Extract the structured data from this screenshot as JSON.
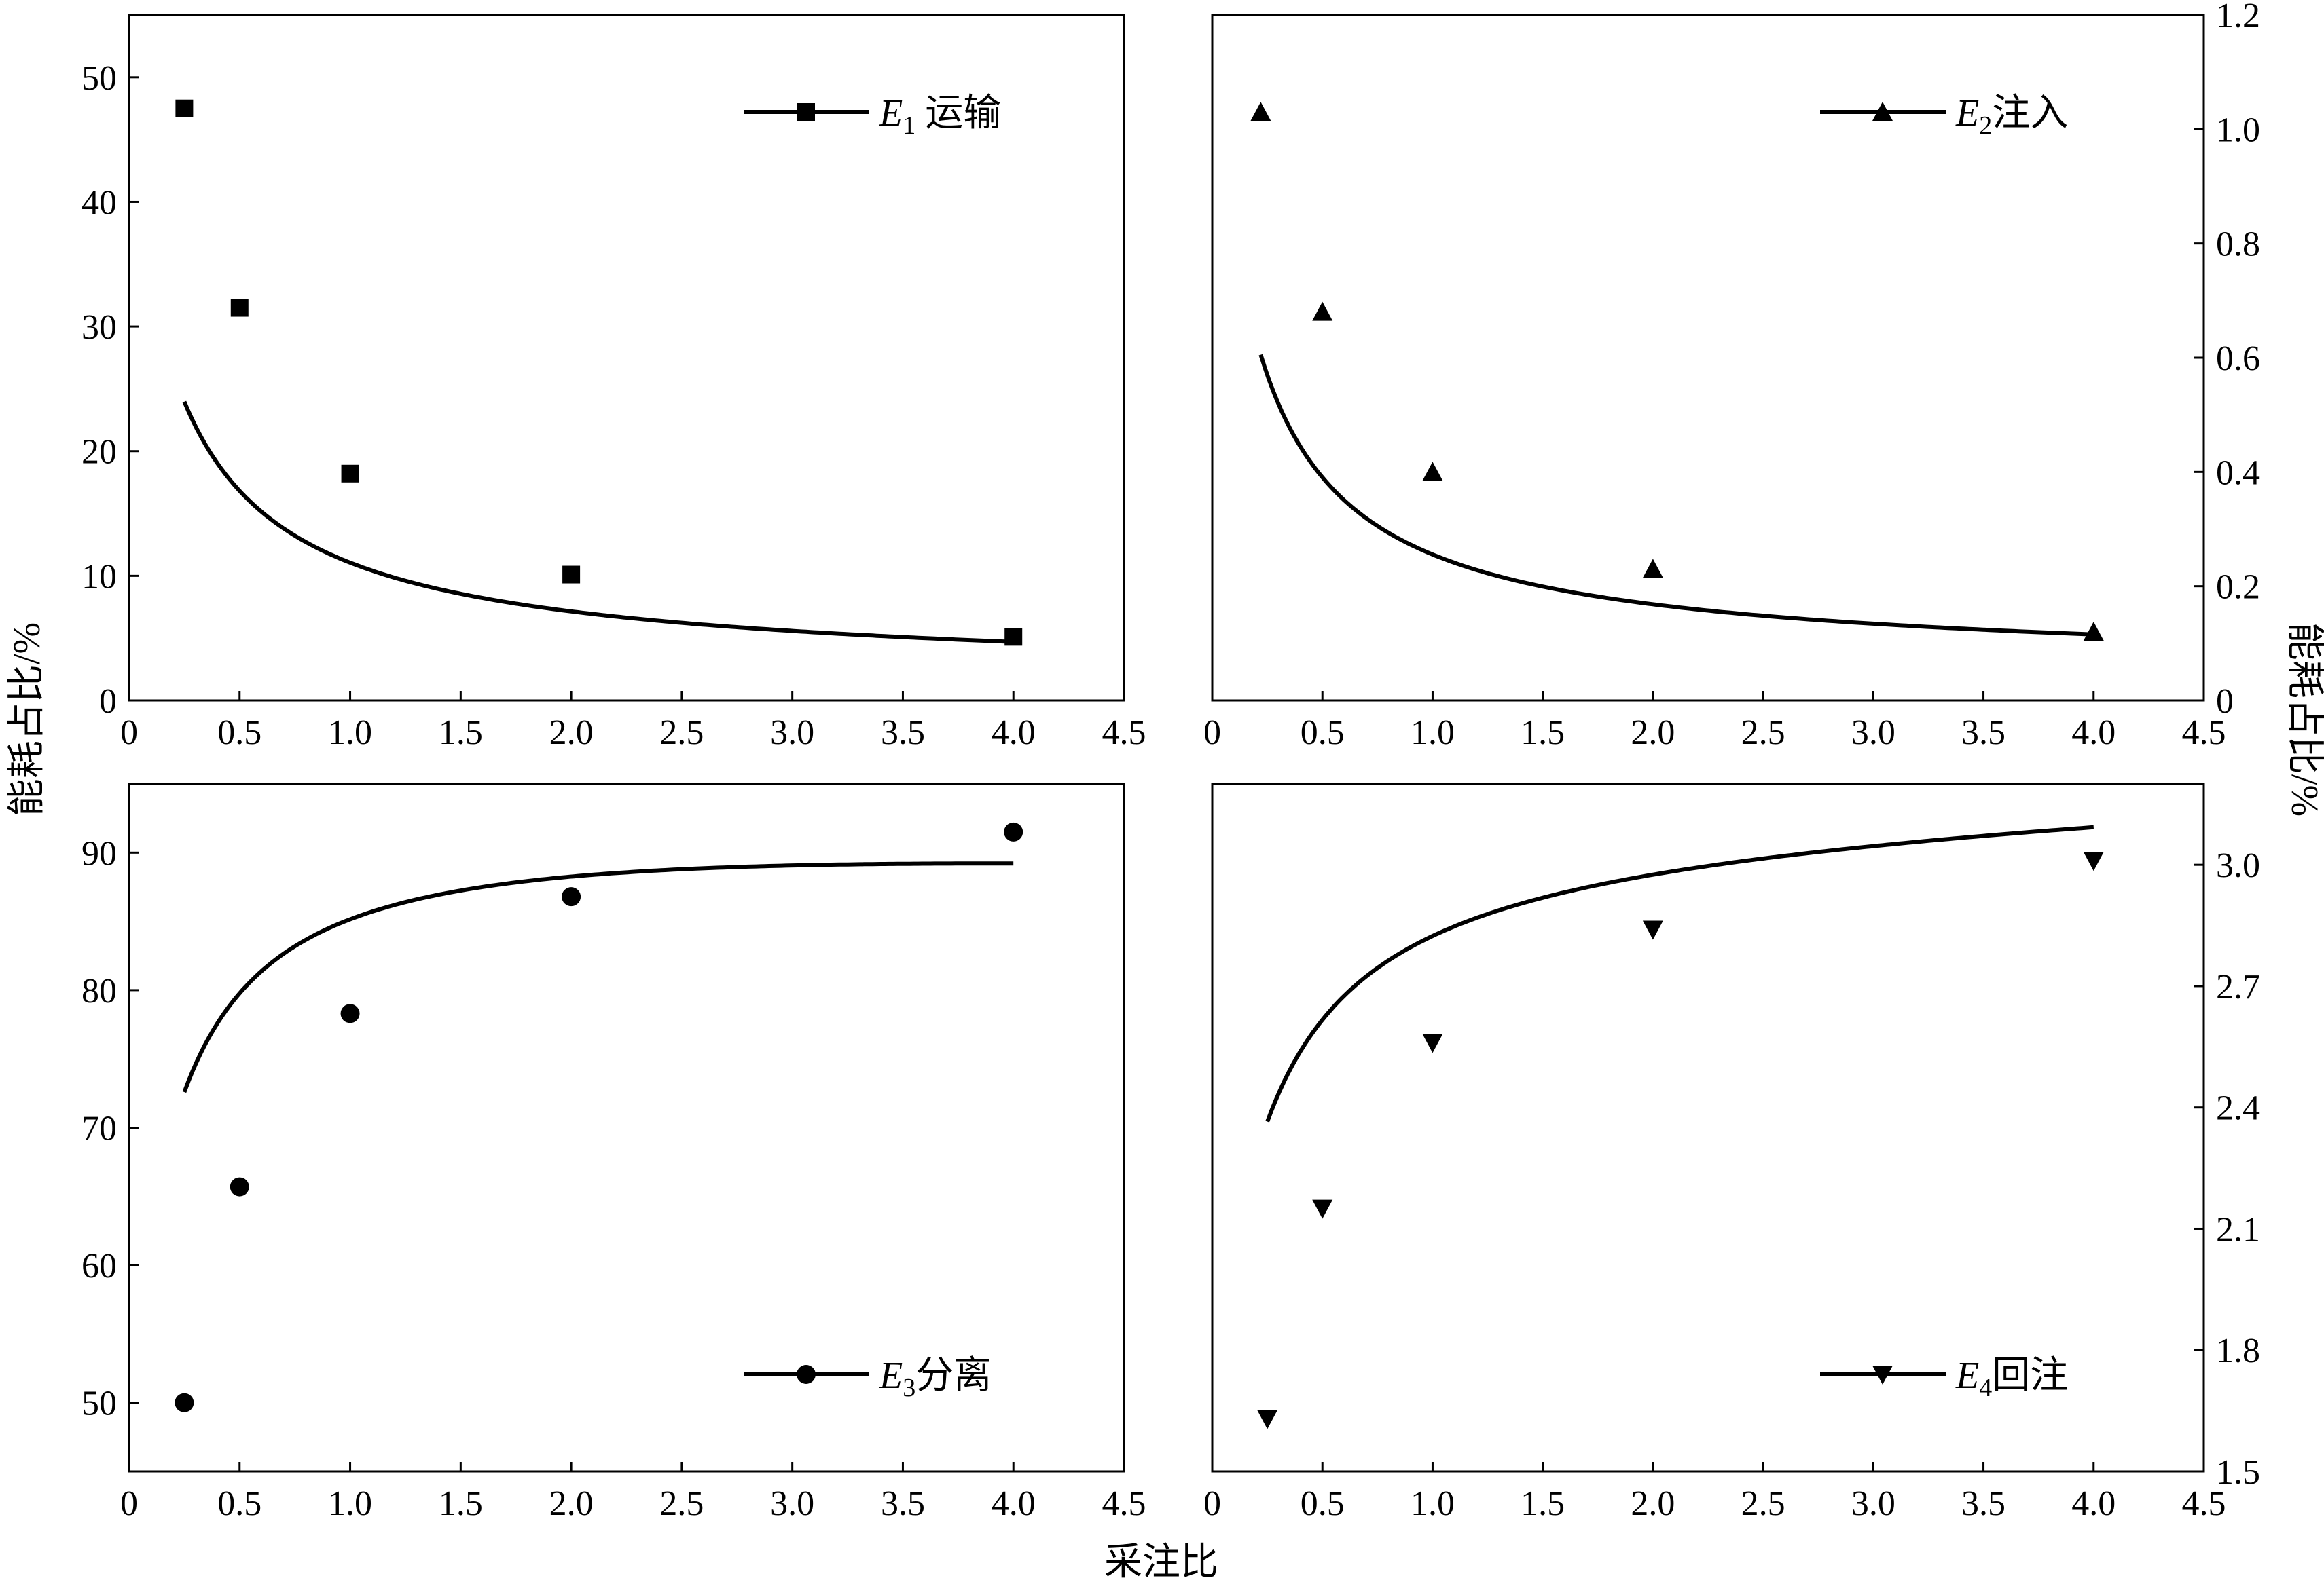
{
  "figure": {
    "xlabel": "采注比",
    "ylabel_left": "能耗占比/%",
    "ylabel_right": "能耗占比/%"
  },
  "chart_data": [
    {
      "type": "scatter",
      "marker": "square",
      "legend": {
        "symbol": "E",
        "sub": "1",
        "text": " 运输",
        "placement": "top-right"
      },
      "x": [
        0.25,
        0.5,
        1.0,
        2.0,
        4.0
      ],
      "y": [
        47.5,
        31.5,
        18.2,
        10.1,
        5.1
      ],
      "fit_curve": {
        "a": 10.7,
        "b": 0.105,
        "c": 0.25
      },
      "xlim": [
        0,
        4.5
      ],
      "ylim": [
        0,
        55
      ],
      "xticks": [
        "0",
        "0.5",
        "1.0",
        "1.5",
        "2.0",
        "2.5",
        "3.0",
        "3.5",
        "4.0",
        "4.5"
      ],
      "yticks": [
        0,
        10,
        20,
        30,
        40,
        50
      ],
      "ytick_labels": [
        "0",
        "10",
        "20",
        "30",
        "40",
        "50"
      ],
      "yaxis_side": "left"
    },
    {
      "type": "scatter",
      "marker": "triangle-up",
      "legend": {
        "symbol": "E",
        "sub": "2",
        "text": "注入",
        "placement": "top-right"
      },
      "x": [
        0.22,
        0.5,
        1.0,
        2.0,
        4.0
      ],
      "y": [
        1.03,
        0.68,
        0.4,
        0.23,
        0.12
      ],
      "fit_curve": {
        "a": 0.225,
        "b": 0.0,
        "c": 0.2
      },
      "xlim": [
        0,
        4.5
      ],
      "ylim": [
        0,
        1.2
      ],
      "xticks": [
        "0",
        "0.5",
        "1.0",
        "1.5",
        "2.0",
        "2.5",
        "3.0",
        "3.5",
        "4.0",
        "4.5"
      ],
      "yticks": [
        0,
        0.2,
        0.4,
        0.6,
        0.8,
        1.0,
        1.2
      ],
      "ytick_labels": [
        "0",
        "0.2",
        "0.4",
        "0.6",
        "0.8",
        "1.0",
        "1.2"
      ],
      "yaxis_side": "right"
    },
    {
      "type": "scatter",
      "marker": "circle",
      "legend": {
        "symbol": "E",
        "sub": "3",
        "text": "分离",
        "placement": "bottom-right"
      },
      "x": [
        0.25,
        0.5,
        1.0,
        2.0,
        4.0
      ],
      "y": [
        50.0,
        65.7,
        78.3,
        86.8,
        91.5
      ],
      "fit_curve": {
        "a": -10.1,
        "b": 94.0,
        "c": 0.225
      },
      "xlim": [
        0,
        4.5
      ],
      "ylim": [
        45,
        95
      ],
      "xticks": [
        "0",
        "0.5",
        "1.0",
        "1.5",
        "2.0",
        "2.5",
        "3.0",
        "3.5",
        "4.0",
        "4.5"
      ],
      "yticks": [
        50,
        60,
        70,
        80,
        90
      ],
      "ytick_labels": [
        "50",
        "60",
        "70",
        "80",
        "90"
      ],
      "yaxis_side": "left"
    },
    {
      "type": "scatter",
      "marker": "triangle-down",
      "legend": {
        "symbol": "E",
        "sub": "4",
        "text": "回注",
        "placement": "bottom-right"
      },
      "x": [
        0.25,
        0.5,
        1.0,
        2.0,
        4.0
      ],
      "y": [
        1.63,
        2.15,
        2.56,
        2.84,
        3.01
      ],
      "fit_curve": {
        "a": -0.37,
        "b": 3.1,
        "c": 0.25
      },
      "xlim": [
        0,
        4.5
      ],
      "ylim": [
        1.5,
        3.2
      ],
      "xticks": [
        "0",
        "0.5",
        "1.0",
        "1.5",
        "2.0",
        "2.5",
        "3.0",
        "3.5",
        "4.0",
        "4.5"
      ],
      "yticks": [
        1.5,
        1.8,
        2.1,
        2.4,
        2.7,
        3.0
      ],
      "ytick_labels": [
        "1.5",
        "1.8",
        "2.1",
        "2.4",
        "2.7",
        "3.0"
      ],
      "yaxis_side": "right"
    }
  ]
}
